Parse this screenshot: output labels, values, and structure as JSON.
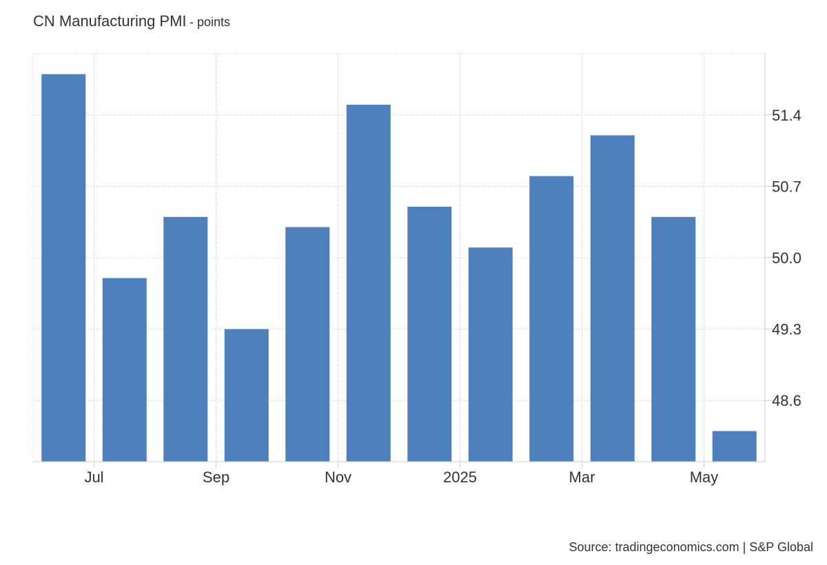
{
  "header": {
    "title": "CN Manufacturing PMI",
    "unit": "- points"
  },
  "source": "Source: tradingeconomics.com | S&P Global",
  "chart_data": {
    "type": "bar",
    "title": "CN Manufacturing PMI",
    "unit": "points",
    "categories": [
      "2024-06",
      "2024-07",
      "2024-08",
      "2024-09",
      "2024-10",
      "2024-11",
      "2024-12",
      "2025-01",
      "2025-02",
      "2025-03",
      "2025-04",
      "2025-05"
    ],
    "values": [
      51.8,
      49.8,
      50.4,
      49.3,
      50.3,
      51.5,
      50.5,
      50.1,
      50.8,
      51.2,
      50.4,
      48.3
    ],
    "x_tick_labels": [
      {
        "label": "Jul",
        "index": 1
      },
      {
        "label": "Sep",
        "index": 3
      },
      {
        "label": "Nov",
        "index": 5
      },
      {
        "label": "2025",
        "index": 7
      },
      {
        "label": "Mar",
        "index": 9
      },
      {
        "label": "May",
        "index": 11
      }
    ],
    "y_ticks": [
      48.6,
      49.3,
      50.0,
      50.7,
      51.4
    ],
    "y_tick_labels": [
      "48.6",
      "49.3",
      "50.0",
      "50.7",
      "51.4"
    ],
    "ylim": [
      48.0,
      52.0
    ],
    "y_axis_side": "right",
    "grid": true,
    "legend": false,
    "colors": {
      "bar": "#4d80bc",
      "grid": "#d9d9d9",
      "axis": "#cccccc"
    }
  }
}
